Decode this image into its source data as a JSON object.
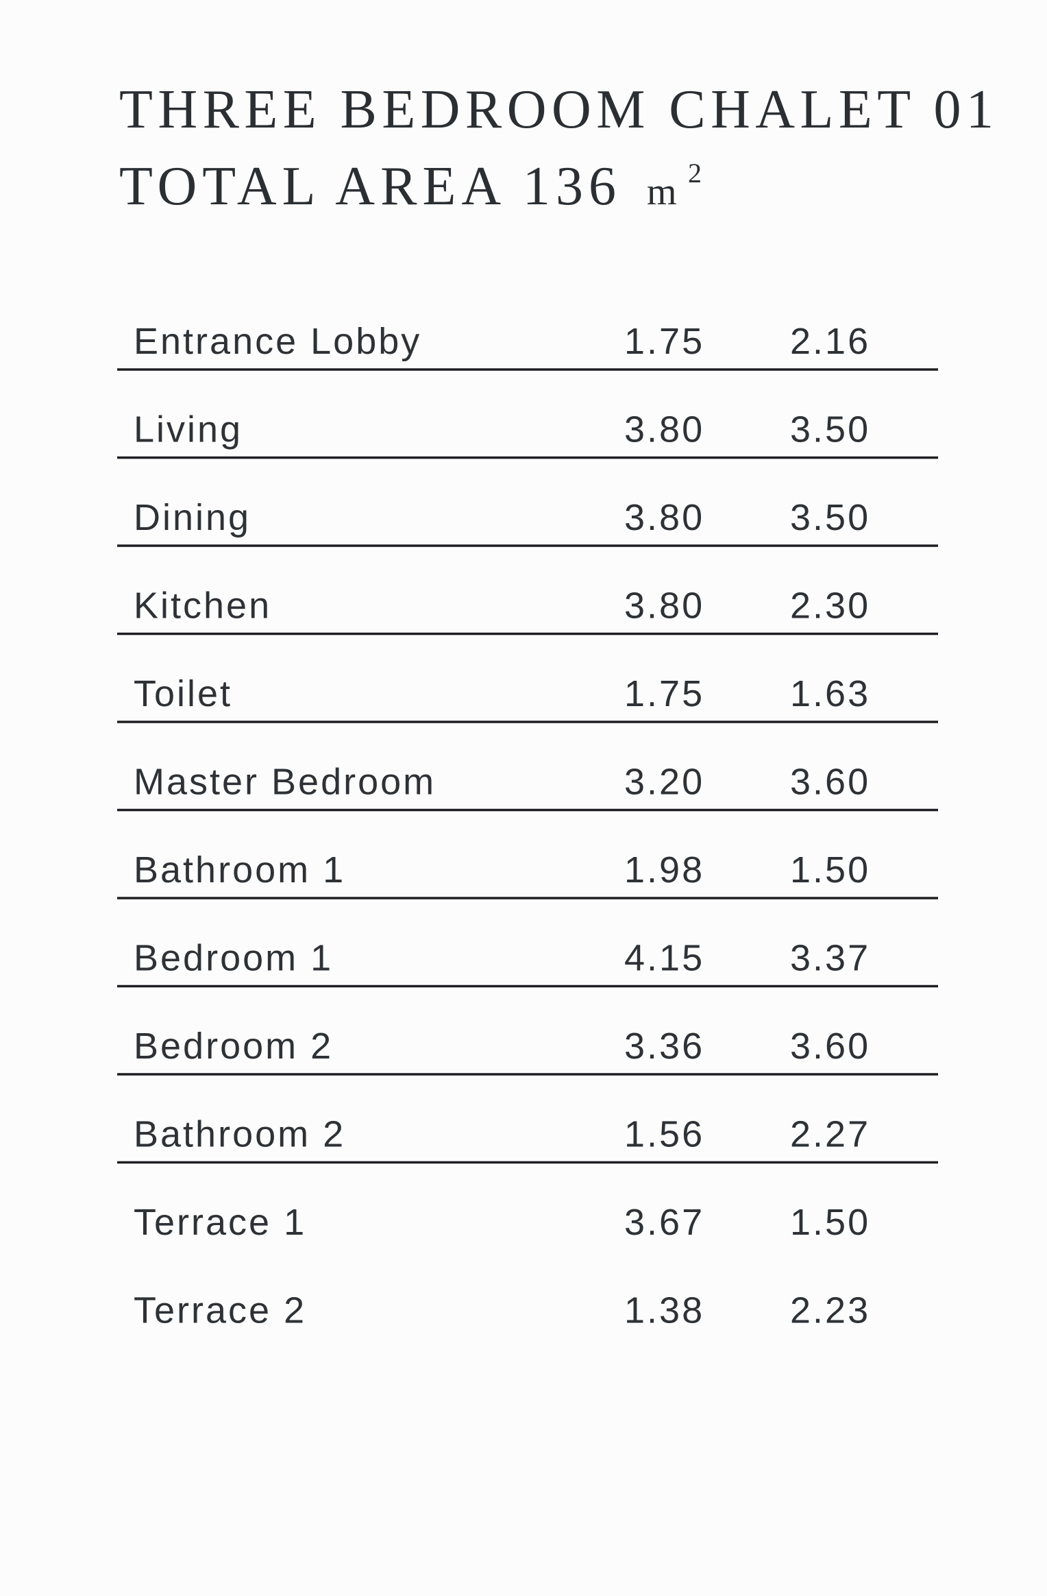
{
  "header": {
    "title": "THREE BEDROOM CHALET 01",
    "area_label": "TOTAL AREA 136",
    "unit": "m",
    "unit_exponent": "2"
  },
  "table": {
    "rows": [
      [
        "Entrance Lobby",
        "1.75",
        "2.16"
      ],
      [
        "Living",
        "3.80",
        "3.50"
      ],
      [
        "Dining",
        "3.80",
        "3.50"
      ],
      [
        "Kitchen",
        "3.80",
        "2.30"
      ],
      [
        "Toilet",
        "1.75",
        "1.63"
      ],
      [
        "Master Bedroom",
        "3.20",
        "3.60"
      ],
      [
        "Bathroom 1",
        "1.98",
        "1.50"
      ],
      [
        "Bedroom 1",
        "4.15",
        "3.37"
      ],
      [
        "Bedroom 2",
        "3.36",
        "3.60"
      ],
      [
        "Bathroom 2",
        "1.56",
        "2.27"
      ],
      [
        "Terrace 1",
        "3.67",
        "1.50"
      ],
      [
        "Terrace 2",
        "1.38",
        "2.23"
      ]
    ]
  }
}
